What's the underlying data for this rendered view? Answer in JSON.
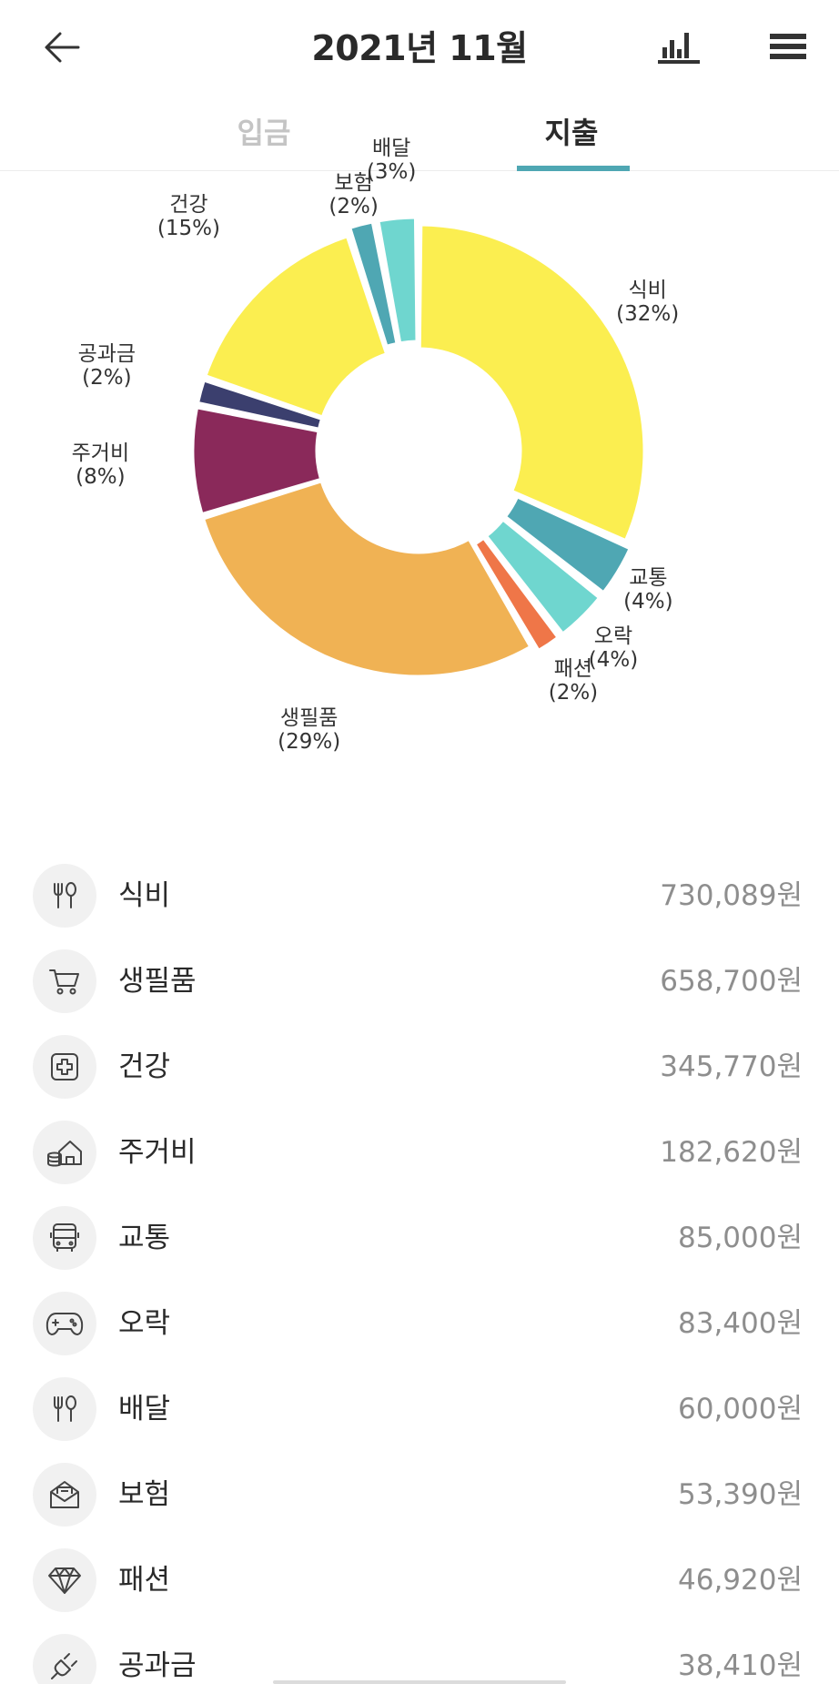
{
  "header": {
    "title": "2021년 11월"
  },
  "tabs": [
    {
      "label": "입금",
      "active": false
    },
    {
      "label": "지출",
      "active": true
    }
  ],
  "accent_color": "#4fa7b3",
  "chart_data": {
    "type": "pie",
    "donut": true,
    "categories": [
      "식비",
      "교통",
      "오락",
      "패션",
      "생필품",
      "주거비",
      "공과금",
      "건강",
      "보험",
      "배달"
    ],
    "values": [
      32,
      4,
      4,
      2,
      29,
      8,
      2,
      15,
      2,
      3
    ],
    "value_labels": [
      "(32%)",
      "(4%)",
      "(4%)",
      "(2%)",
      "(29%)",
      "(8%)",
      "(2%)",
      "(15%)",
      "(2%)",
      "(3%)"
    ],
    "colors": [
      "#fbee50",
      "#4fa7b3",
      "#6fd6cf",
      "#ef7648",
      "#f0b254",
      "#8a295a",
      "#3b3f6e",
      "#fbee50",
      "#4fa7b3",
      "#6fd6cf"
    ],
    "start_angle_deg": 0,
    "direction": "clockwise",
    "legend": "labels-outside"
  },
  "items": [
    {
      "name": "식비",
      "amount": "730,089원",
      "icon": "fork-spoon-icon"
    },
    {
      "name": "생필품",
      "amount": "658,700원",
      "icon": "shopping-cart-icon"
    },
    {
      "name": "건강",
      "amount": "345,770원",
      "icon": "medical-cross-icon"
    },
    {
      "name": "주거비",
      "amount": "182,620원",
      "icon": "house-coins-icon"
    },
    {
      "name": "교통",
      "amount": "85,000원",
      "icon": "bus-icon"
    },
    {
      "name": "오락",
      "amount": "83,400원",
      "icon": "gamepad-icon"
    },
    {
      "name": "배달",
      "amount": "60,000원",
      "icon": "fork-spoon-icon"
    },
    {
      "name": "보험",
      "amount": "53,390원",
      "icon": "envelope-icon"
    },
    {
      "name": "패션",
      "amount": "46,920원",
      "icon": "diamond-icon"
    },
    {
      "name": "공과금",
      "amount": "38,410원",
      "icon": "plug-icon"
    }
  ]
}
